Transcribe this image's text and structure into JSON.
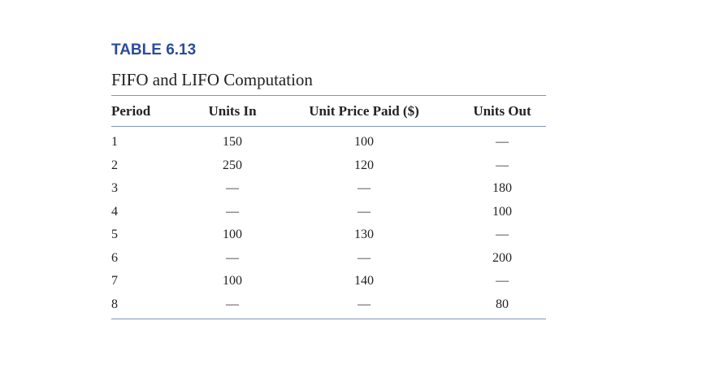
{
  "table": {
    "label": "TABLE 6.13",
    "title": "FIFO and LIFO Computation",
    "columns": [
      "Period",
      "Units In",
      "Unit Price Paid ($)",
      "Units Out"
    ],
    "rows": [
      [
        1,
        150,
        100,
        "—"
      ],
      [
        2,
        250,
        120,
        "—"
      ],
      [
        3,
        "—",
        "—",
        180
      ],
      [
        4,
        "—",
        "—",
        100
      ],
      [
        5,
        100,
        130,
        "—"
      ],
      [
        6,
        "—",
        "—",
        200
      ],
      [
        7,
        100,
        140,
        "—"
      ],
      [
        8,
        "—",
        "—",
        80
      ]
    ]
  }
}
